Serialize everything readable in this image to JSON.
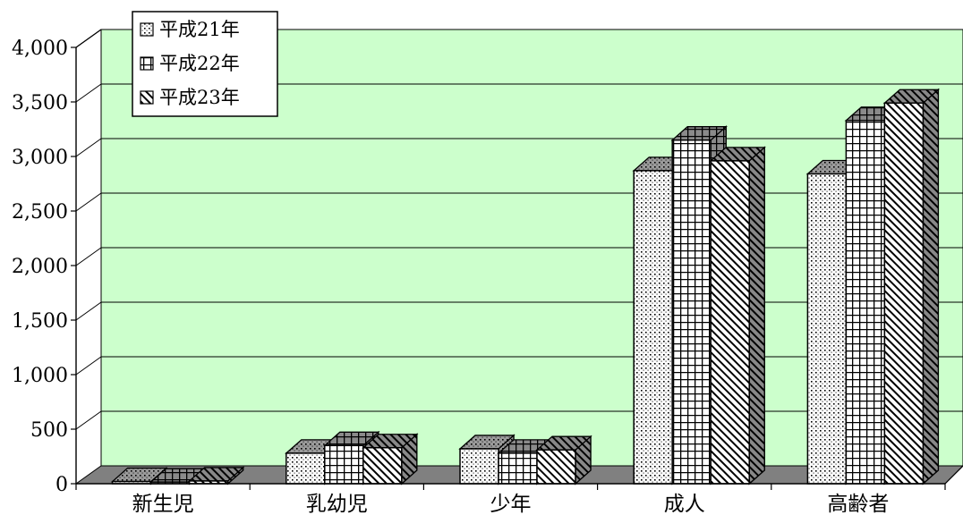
{
  "chart_data": {
    "type": "bar",
    "bar_style": "3d-clustered",
    "categories": [
      "新生児",
      "乳幼児",
      "少年",
      "成人",
      "高齢者"
    ],
    "series": [
      {
        "name": "平成21年",
        "pattern": "dots",
        "values": [
          20,
          280,
          320,
          2870,
          2840
        ]
      },
      {
        "name": "平成22年",
        "pattern": "grid",
        "values": [
          15,
          350,
          280,
          3150,
          3330
        ]
      },
      {
        "name": "平成23年",
        "pattern": "diagonal",
        "values": [
          25,
          330,
          310,
          2960,
          3490
        ]
      }
    ],
    "ylim": [
      0,
      4000
    ],
    "yticks": [
      0,
      500,
      1000,
      1500,
      2000,
      2500,
      3000,
      3500,
      4000
    ],
    "ytick_labels": [
      "0",
      "500",
      "1,000",
      "1,500",
      "2,000",
      "2,500",
      "3,000",
      "3,500",
      "4,000"
    ],
    "grid": true,
    "legend_position": "top-left",
    "colors": {
      "wall": "#ccffcc",
      "floor": "#808080",
      "gridline": "#000000",
      "bar_fill": "#ffffff",
      "side_dots": "#808080",
      "side_grid": "#666666",
      "side_diag": "#5a5a5a"
    }
  }
}
